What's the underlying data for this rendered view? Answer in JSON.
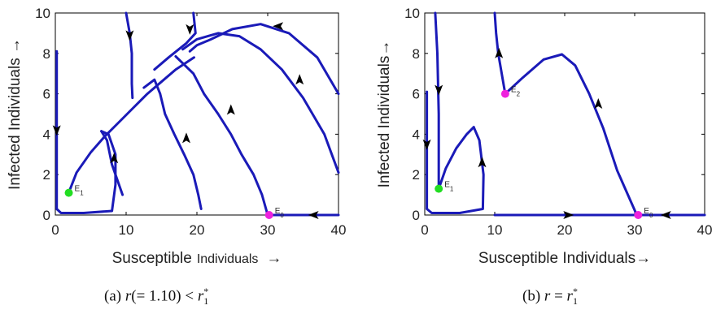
{
  "chart_data": [
    {
      "type": "line",
      "panel": "a",
      "caption_prefix": "(a) ",
      "caption_var": "r",
      "caption_mid": "(= 1.10) < ",
      "caption_rhs_var": "r",
      "caption_rhs_sup": "*",
      "caption_rhs_sub": "1",
      "xlabel_main": "Susceptible",
      "xlabel_small": "Individuals",
      "xlabel_arrow": "→",
      "ylabel": "Infected  Individuals  →",
      "xlim": [
        0,
        40
      ],
      "ylim": [
        0,
        10
      ],
      "xticks": [
        "0",
        "10",
        "20",
        "30",
        "40"
      ],
      "yticks": [
        "0",
        "2",
        "4",
        "6",
        "8",
        "10"
      ],
      "grid": false,
      "series": [
        {
          "x": [
            0.2,
            0.2,
            0.8,
            4,
            8,
            8.5,
            8.5,
            7.5,
            6.5
          ],
          "y": [
            8.1,
            0.3,
            0.1,
            0.1,
            0.2,
            1.5,
            3.0,
            4.0,
            4.15
          ]
        },
        {
          "x": [
            2,
            3,
            5,
            7,
            9,
            11,
            13,
            15,
            17,
            19.6
          ],
          "y": [
            1.2,
            2.1,
            3.1,
            3.9,
            4.6,
            5.3,
            6.0,
            6.6,
            7.2,
            7.8
          ]
        },
        {
          "x": [
            10,
            10.5,
            10.8,
            10.8,
            10.9
          ],
          "y": [
            10,
            9.0,
            8.0,
            6.5,
            5.8
          ]
        },
        {
          "x": [
            19.5,
            19.8,
            18.5,
            16,
            14
          ],
          "y": [
            10,
            9.0,
            8.5,
            7.8,
            7.2
          ]
        },
        {
          "x": [
            6.5,
            7.3,
            8.0,
            9.5
          ],
          "y": [
            4.15,
            3.7,
            2.5,
            1.0
          ]
        },
        {
          "x": [
            20.6,
            20.2,
            19.5,
            18.2,
            16.8,
            15.5,
            14.8,
            14.0,
            12.5
          ],
          "y": [
            0.3,
            1.0,
            2.0,
            3.0,
            4.0,
            5.0,
            6.0,
            6.7,
            6.3
          ]
        },
        {
          "x": [
            30,
            29.2,
            28.0,
            26.3,
            24.8,
            23.0,
            21.0,
            19.5,
            17.0
          ],
          "y": [
            0.0,
            1.0,
            2.0,
            3.0,
            4.0,
            5.0,
            6.0,
            7.0,
            7.85
          ]
        },
        {
          "x": [
            40,
            38,
            35,
            32,
            29,
            26,
            23,
            20,
            18
          ],
          "y": [
            2.1,
            4.0,
            5.8,
            7.2,
            8.2,
            8.85,
            9.0,
            8.7,
            8.2
          ]
        },
        {
          "x": [
            40,
            37,
            33,
            29,
            25,
            22,
            20,
            19
          ],
          "y": [
            6.0,
            7.8,
            9.0,
            9.45,
            9.2,
            8.7,
            8.4,
            8.1
          ]
        },
        {
          "x": [
            30,
            33,
            36,
            40
          ],
          "y": [
            0.0,
            0.0,
            0.0,
            0.0
          ]
        }
      ],
      "arrows": [
        {
          "x": 0.2,
          "y": 4.2,
          "dir": "down"
        },
        {
          "x": 8.3,
          "y": 2.8,
          "dir": "up"
        },
        {
          "x": 10.5,
          "y": 8.9,
          "dir": "down"
        },
        {
          "x": 19.0,
          "y": 9.2,
          "dir": "down"
        },
        {
          "x": 18.5,
          "y": 3.8,
          "dir": "up"
        },
        {
          "x": 24.8,
          "y": 5.2,
          "dir": "up"
        },
        {
          "x": 34.5,
          "y": 6.7,
          "dir": "up"
        },
        {
          "x": 31.5,
          "y": 9.35,
          "dir": "left"
        },
        {
          "x": 36.5,
          "y": 0.0,
          "dir": "left"
        }
      ],
      "points": [
        {
          "label": "E",
          "sub": "1",
          "x": 1.9,
          "y": 1.1,
          "color": "#22dd22"
        },
        {
          "label": "E",
          "sub": "0",
          "x": 30.2,
          "y": 0.0,
          "color": "#ee22dd"
        }
      ]
    },
    {
      "type": "line",
      "panel": "b",
      "caption_prefix": "(b) ",
      "caption_var": "r",
      "caption_mid": " = ",
      "caption_rhs_var": "r",
      "caption_rhs_sup": "*",
      "caption_rhs_sub": "1",
      "xlabel_main": "Susceptible Individuals→",
      "xlabel_small": "",
      "xlabel_arrow": "",
      "ylabel": "Infected Individuals→",
      "xlim": [
        0,
        40
      ],
      "ylim": [
        0,
        10
      ],
      "xticks": [
        "0",
        "10",
        "20",
        "30",
        "40"
      ],
      "yticks": [
        "0",
        "2",
        "4",
        "6",
        "8",
        "10"
      ],
      "grid": false,
      "series": [
        {
          "x": [
            0.3,
            0.3,
            1,
            5,
            8.3,
            8.4,
            7.8,
            7.0
          ],
          "y": [
            6.1,
            0.3,
            0.1,
            0.1,
            0.3,
            2.0,
            3.7,
            4.35
          ]
        },
        {
          "x": [
            2.0,
            3.0,
            4.5,
            6.0,
            7.0
          ],
          "y": [
            1.3,
            2.3,
            3.3,
            4.0,
            4.35
          ]
        },
        {
          "x": [
            1.5,
            1.8,
            2.0,
            2.0
          ],
          "y": [
            10.0,
            8.0,
            5.0,
            1.3
          ]
        },
        {
          "x": [
            10.0,
            10.2,
            10.5,
            11.0,
            11.5
          ],
          "y": [
            10.0,
            9.0,
            8.0,
            7.0,
            6.0
          ]
        },
        {
          "x": [
            11.5,
            14.0,
            17.0,
            19.6,
            21.5,
            23.5,
            25.5,
            27.5,
            30.3
          ],
          "y": [
            6.0,
            6.8,
            7.7,
            7.95,
            7.4,
            6.0,
            4.3,
            2.2,
            0.0
          ]
        },
        {
          "x": [
            10.0,
            20.0,
            30.0
          ],
          "y": [
            0.0,
            0.0,
            0.0
          ]
        },
        {
          "x": [
            30.5,
            35.0,
            40.0
          ],
          "y": [
            0.0,
            0.0,
            0.0
          ]
        }
      ],
      "arrows": [
        {
          "x": 0.3,
          "y": 3.5,
          "dir": "down"
        },
        {
          "x": 2.0,
          "y": 6.2,
          "dir": "down"
        },
        {
          "x": 8.2,
          "y": 2.6,
          "dir": "up"
        },
        {
          "x": 10.6,
          "y": 8.0,
          "dir": "up"
        },
        {
          "x": 24.8,
          "y": 5.5,
          "dir": "up"
        },
        {
          "x": 20.5,
          "y": 0.0,
          "dir": "right"
        },
        {
          "x": 34.5,
          "y": 0.0,
          "dir": "left"
        }
      ],
      "points": [
        {
          "label": "E",
          "sub": "1",
          "x": 2.0,
          "y": 1.3,
          "color": "#22dd22"
        },
        {
          "label": "E",
          "sub": "2",
          "x": 11.5,
          "y": 6.0,
          "color": "#ee22dd"
        },
        {
          "label": "E",
          "sub": "0",
          "x": 30.5,
          "y": 0.0,
          "color": "#ee22dd"
        }
      ]
    }
  ]
}
